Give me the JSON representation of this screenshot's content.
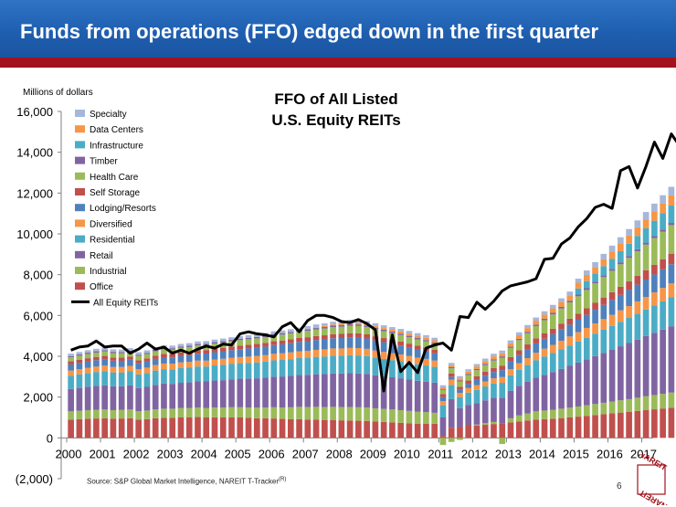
{
  "header": {
    "title": "Funds from operations (FFO) edged down in the first quarter",
    "accent_color": "#1f5fb0",
    "stripe_color": "#a2121c"
  },
  "footer": {
    "source": "Source: S&P Global Market Intelligence, NAREIT T-Tracker",
    "source_mark": "(R)",
    "page_number": "6",
    "logo_text": "NAREIT",
    "logo_color": "#a2121c"
  },
  "chart_data": {
    "type": "bar",
    "stacked": true,
    "title": [
      "FFO of All Listed",
      "U.S. Equity REITs"
    ],
    "ylabel": "Millions of dollars",
    "xlabel": "",
    "ylim": [
      -2000,
      16000
    ],
    "yticks": [
      "(2,000)",
      "0",
      "2,000",
      "4,000",
      "6,000",
      "8,000",
      "10,000",
      "12,000",
      "14,000",
      "16,000"
    ],
    "ytick_values": [
      -2000,
      0,
      2000,
      4000,
      6000,
      8000,
      10000,
      12000,
      14000,
      16000
    ],
    "xticks": [
      "2000",
      "2001",
      "2002",
      "2003",
      "2004",
      "2005",
      "2006",
      "2007",
      "2008",
      "2009",
      "2010",
      "2011",
      "2012",
      "2013",
      "2014",
      "2015",
      "2016",
      "2017"
    ],
    "x_start": "2000 Q1",
    "x_end": "2017 Q1",
    "grid": false,
    "legend_position": "top-left",
    "series": [
      {
        "name": "Office",
        "color": "#c0504d",
        "values": [
          900,
          920,
          940,
          950,
          960,
          940,
          950,
          960,
          900,
          920,
          960,
          980,
          980,
          1000,
          1000,
          1020,
          1000,
          1010,
          1000,
          1000,
          1000,
          980,
          960,
          960,
          950,
          930,
          920,
          920,
          900,
          900,
          880,
          880,
          860,
          850,
          840,
          830,
          800,
          780,
          760,
          740,
          720,
          700,
          700,
          690,
          100,
          500,
          550,
          620,
          600,
          640,
          680,
          720,
          760,
          800,
          850,
          900,
          920,
          940,
          970,
          1000,
          1040,
          1080,
          1120,
          1160,
          1200,
          1240,
          1280,
          1320,
          1360,
          1400,
          1440,
          1480,
          1520,
          1560
        ]
      },
      {
        "name": "Industrial",
        "color": "#9bbb59",
        "values": [
          400,
          410,
          420,
          430,
          430,
          420,
          420,
          430,
          410,
          420,
          440,
          450,
          450,
          460,
          460,
          470,
          470,
          480,
          490,
          500,
          500,
          510,
          520,
          530,
          550,
          560,
          580,
          600,
          610,
          620,
          630,
          640,
          650,
          660,
          660,
          660,
          650,
          640,
          630,
          620,
          600,
          580,
          560,
          540,
          -350,
          -200,
          -100,
          0,
          50,
          80,
          100,
          -300,
          200,
          300,
          350,
          400,
          420,
          440,
          460,
          480,
          500,
          520,
          540,
          560,
          580,
          600,
          620,
          650,
          680,
          700,
          720,
          740,
          760,
          780
        ]
      },
      {
        "name": "Retail",
        "color": "#8064a2",
        "values": [
          1100,
          1120,
          1150,
          1170,
          1190,
          1170,
          1160,
          1180,
          1130,
          1160,
          1200,
          1230,
          1220,
          1240,
          1260,
          1280,
          1300,
          1320,
          1340,
          1360,
          1400,
          1420,
          1440,
          1460,
          1500,
          1520,
          1540,
          1560,
          1580,
          1600,
          1620,
          1640,
          1650,
          1660,
          1660,
          1650,
          1620,
          1600,
          1580,
          1560,
          1540,
          1520,
          1500,
          1480,
          900,
          1400,
          900,
          1000,
          1050,
          1120,
          1180,
          1250,
          1350,
          1450,
          1550,
          1650,
          1750,
          1850,
          1950,
          2050,
          2150,
          2250,
          2350,
          2450,
          2550,
          2650,
          2750,
          2850,
          2950,
          3050,
          3150,
          3250,
          3350,
          3450
        ]
      },
      {
        "name": "Residential",
        "color": "#4bacc6",
        "values": [
          650,
          660,
          670,
          680,
          690,
          680,
          680,
          690,
          670,
          680,
          700,
          710,
          710,
          720,
          720,
          730,
          730,
          740,
          750,
          760,
          760,
          770,
          780,
          790,
          800,
          810,
          820,
          830,
          840,
          850,
          860,
          870,
          870,
          880,
          880,
          870,
          860,
          850,
          840,
          830,
          820,
          810,
          790,
          770,
          600,
          700,
          550,
          600,
          650,
          680,
          700,
          730,
          760,
          790,
          820,
          860,
          900,
          930,
          960,
          1000,
          1030,
          1060,
          1100,
          1130,
          1160,
          1200,
          1230,
          1270,
          1300,
          1340,
          1380,
          1420,
          1460,
          1500
        ]
      },
      {
        "name": "Diversified",
        "color": "#f79646",
        "values": [
          250,
          255,
          260,
          265,
          270,
          265,
          265,
          270,
          260,
          265,
          270,
          275,
          275,
          280,
          280,
          285,
          285,
          290,
          295,
          300,
          300,
          305,
          310,
          315,
          320,
          325,
          330,
          335,
          340,
          345,
          350,
          355,
          355,
          360,
          360,
          355,
          350,
          345,
          340,
          335,
          330,
          325,
          320,
          310,
          200,
          250,
          200,
          220,
          240,
          250,
          260,
          280,
          300,
          320,
          340,
          360,
          380,
          400,
          420,
          440,
          460,
          480,
          500,
          520,
          540,
          560,
          580,
          600,
          620,
          640,
          660,
          680,
          700,
          720
        ]
      },
      {
        "name": "Lodging/Resorts",
        "color": "#4f81bd",
        "values": [
          300,
          305,
          310,
          315,
          320,
          310,
          300,
          300,
          280,
          290,
          300,
          310,
          310,
          320,
          330,
          340,
          350,
          360,
          370,
          380,
          390,
          400,
          410,
          420,
          430,
          440,
          450,
          460,
          470,
          480,
          490,
          500,
          510,
          520,
          520,
          510,
          500,
          480,
          460,
          440,
          420,
          400,
          380,
          350,
          200,
          150,
          150,
          200,
          250,
          280,
          310,
          340,
          370,
          400,
          430,
          460,
          490,
          520,
          550,
          580,
          610,
          640,
          670,
          700,
          730,
          760,
          790,
          820,
          850,
          880,
          910,
          940,
          970,
          1000
        ]
      },
      {
        "name": "Self Storage",
        "color": "#c0504d",
        "values": [
          150,
          152,
          154,
          156,
          158,
          156,
          156,
          158,
          154,
          156,
          160,
          162,
          162,
          164,
          166,
          168,
          170,
          172,
          174,
          176,
          178,
          180,
          182,
          184,
          186,
          188,
          190,
          192,
          194,
          196,
          198,
          200,
          202,
          204,
          204,
          202,
          200,
          198,
          196,
          194,
          192,
          190,
          188,
          186,
          150,
          160,
          160,
          170,
          180,
          190,
          200,
          210,
          220,
          230,
          240,
          250,
          260,
          270,
          280,
          290,
          300,
          320,
          340,
          360,
          380,
          400,
          420,
          440,
          460,
          480,
          500,
          520,
          540,
          560
        ]
      },
      {
        "name": "Health Care",
        "color": "#9bbb59",
        "values": [
          200,
          205,
          210,
          215,
          220,
          215,
          215,
          220,
          210,
          215,
          220,
          225,
          225,
          230,
          235,
          240,
          245,
          250,
          255,
          260,
          265,
          270,
          275,
          280,
          285,
          290,
          295,
          300,
          310,
          320,
          330,
          340,
          350,
          360,
          360,
          360,
          350,
          340,
          330,
          320,
          310,
          300,
          290,
          280,
          200,
          250,
          250,
          270,
          300,
          330,
          360,
          400,
          450,
          500,
          550,
          600,
          650,
          700,
          750,
          800,
          850,
          900,
          950,
          1000,
          1050,
          1100,
          1150,
          1200,
          1250,
          1300,
          1350,
          1400,
          1450,
          1500
        ]
      },
      {
        "name": "Timber",
        "color": "#8064a2",
        "values": [
          60,
          61,
          62,
          63,
          64,
          63,
          63,
          64,
          62,
          63,
          64,
          65,
          65,
          66,
          66,
          67,
          67,
          68,
          68,
          69,
          69,
          70,
          70,
          71,
          71,
          72,
          72,
          73,
          73,
          74,
          74,
          75,
          75,
          76,
          76,
          75,
          74,
          73,
          72,
          71,
          70,
          69,
          68,
          67,
          50,
          55,
          55,
          58,
          60,
          62,
          64,
          66,
          68,
          70,
          72,
          74,
          76,
          78,
          80,
          82,
          84,
          86,
          88,
          90,
          92,
          94,
          96,
          98,
          100,
          102,
          104,
          106,
          108,
          110
        ]
      },
      {
        "name": "Infrastructure",
        "color": "#4bacc6",
        "values": [
          0,
          0,
          0,
          0,
          0,
          0,
          0,
          0,
          0,
          0,
          0,
          0,
          0,
          0,
          0,
          0,
          0,
          0,
          0,
          0,
          0,
          0,
          0,
          0,
          0,
          0,
          0,
          0,
          0,
          0,
          0,
          0,
          0,
          0,
          0,
          0,
          0,
          0,
          0,
          0,
          0,
          0,
          0,
          0,
          0,
          0,
          0,
          0,
          0,
          0,
          0,
          0,
          0,
          0,
          0,
          0,
          0,
          0,
          0,
          0,
          300,
          350,
          400,
          450,
          500,
          550,
          600,
          650,
          700,
          750,
          800,
          850,
          900,
          950
        ]
      },
      {
        "name": "Data Centers",
        "color": "#f79646",
        "values": [
          0,
          0,
          0,
          0,
          0,
          0,
          0,
          0,
          0,
          0,
          0,
          0,
          0,
          0,
          0,
          0,
          0,
          0,
          0,
          0,
          0,
          0,
          0,
          0,
          0,
          0,
          0,
          0,
          30,
          40,
          50,
          60,
          70,
          80,
          80,
          80,
          80,
          80,
          90,
          100,
          110,
          110,
          110,
          110,
          80,
          100,
          100,
          110,
          120,
          130,
          140,
          150,
          160,
          170,
          180,
          190,
          200,
          220,
          240,
          260,
          280,
          300,
          320,
          340,
          360,
          380,
          400,
          420,
          440,
          460,
          480,
          500,
          520,
          540
        ]
      },
      {
        "name": "Specialty",
        "color": "#a6b7da",
        "values": [
          120,
          121,
          122,
          123,
          124,
          123,
          123,
          124,
          122,
          123,
          124,
          125,
          125,
          126,
          126,
          127,
          127,
          128,
          128,
          129,
          129,
          130,
          130,
          131,
          131,
          132,
          132,
          133,
          133,
          134,
          134,
          135,
          135,
          136,
          136,
          135,
          134,
          133,
          132,
          131,
          130,
          129,
          128,
          127,
          100,
          110,
          110,
          115,
          120,
          125,
          130,
          135,
          140,
          145,
          150,
          155,
          160,
          170,
          180,
          190,
          200,
          220,
          240,
          260,
          280,
          300,
          320,
          340,
          360,
          380,
          400,
          420,
          440,
          460
        ]
      },
      {
        "name": "All Equity REITs",
        "type": "line",
        "color": "#000000",
        "values": [
          4300,
          4450,
          4500,
          4750,
          4450,
          4500,
          4500,
          4150,
          4350,
          4650,
          4350,
          4450,
          4150,
          4300,
          4150,
          4350,
          4500,
          4400,
          4600,
          4550,
          5100,
          5200,
          5100,
          5050,
          4950,
          5450,
          5650,
          5200,
          5750,
          6000,
          6000,
          5900,
          5700,
          5650,
          5800,
          5600,
          5300,
          2300,
          5050,
          3250,
          3700,
          3200,
          4400,
          4550,
          4650,
          4300,
          5950,
          5900,
          6650,
          6300,
          6700,
          7200,
          7450,
          7550,
          7650,
          7800,
          8750,
          8800,
          9500,
          9800,
          10350,
          10750,
          11300,
          11450,
          11250,
          13100,
          13300,
          12250,
          13300,
          14500,
          13700,
          14900,
          14300,
          14300
        ]
      }
    ]
  }
}
